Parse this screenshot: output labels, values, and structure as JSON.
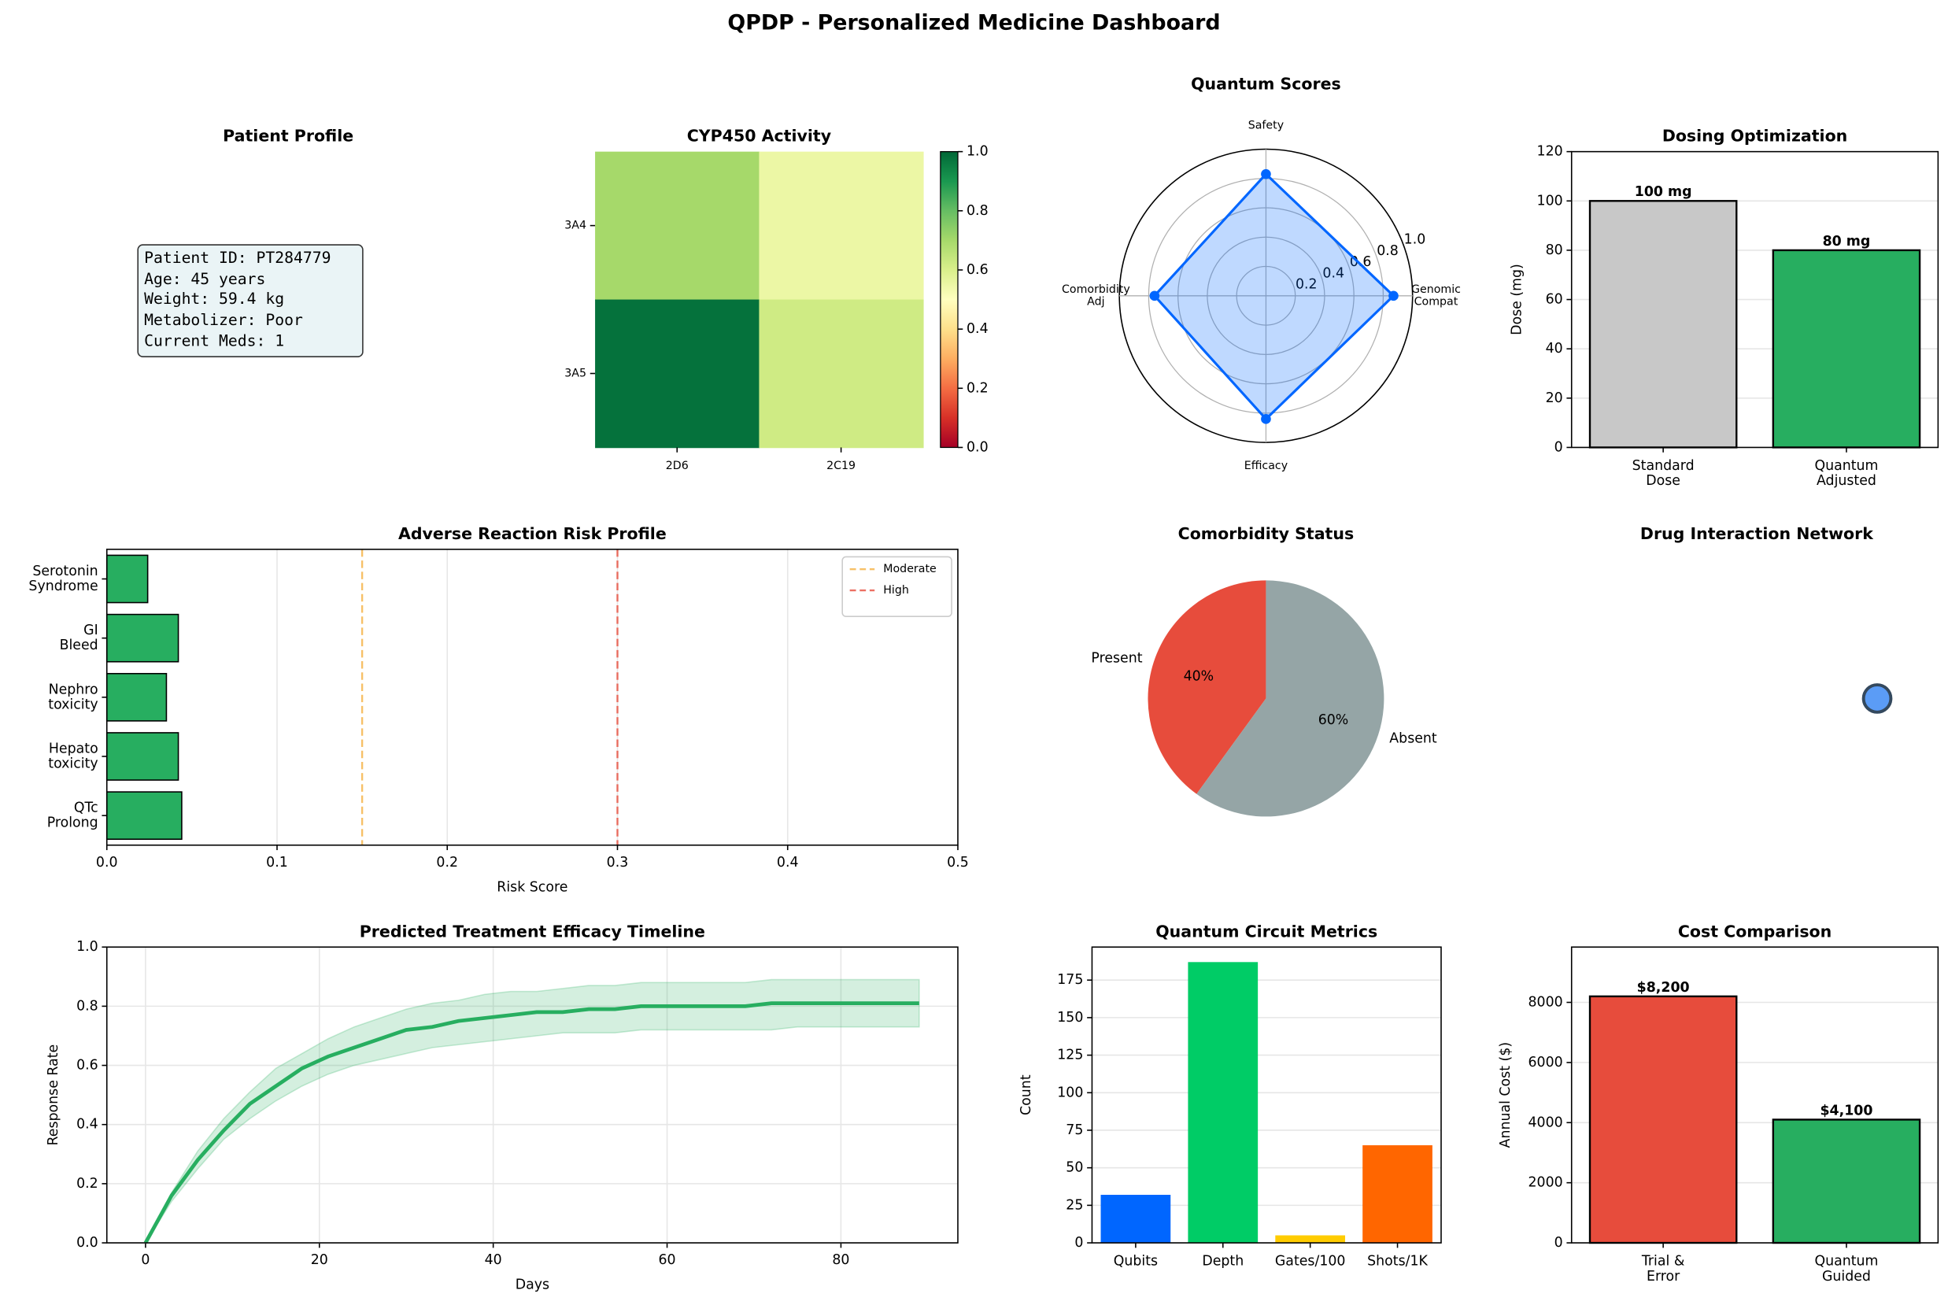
{
  "title": "QPDP - Personalized Medicine Dashboard",
  "patient_profile": {
    "title": "Patient Profile",
    "lines": [
      "Patient ID: PT284779",
      "Age: 45 years",
      "Weight: 59.4 kg",
      "Metabolizer: Poor",
      "Current Meds: 1"
    ]
  },
  "chart_data": [
    {
      "type": "heatmap",
      "title": "CYP450 Activity",
      "rows": [
        "3A4",
        "3A5"
      ],
      "columns": [
        "2D6",
        "2C19"
      ],
      "values": [
        [
          0.7,
          0.55
        ],
        [
          0.98,
          0.62
        ]
      ],
      "colormap": "RdYlGn",
      "clim": [
        0,
        1
      ],
      "cticks": [
        {
          "value": 0,
          "label": "0.0"
        },
        0.2,
        0.4,
        0.6,
        0.8,
        {
          "value": 1,
          "label": "1.0"
        }
      ]
    },
    {
      "type": "radar",
      "title": "Quantum Scores",
      "categories": [
        "Genomic\nCompat",
        "Safety",
        "Comorbidity\nAdj",
        "Efficacy"
      ],
      "values": [
        0.87,
        0.83,
        0.76,
        0.84
      ],
      "color": "#0066ff",
      "rlim": [
        0,
        1
      ],
      "rticks": [
        0.2,
        0.4,
        0.6,
        0.8,
        {
          "value": 1,
          "label": "1.0"
        }
      ]
    },
    {
      "type": "bar",
      "title": "Dosing Optimization",
      "categories": [
        "Standard\nDose",
        "Quantum\nAdjusted"
      ],
      "values": [
        100,
        80
      ],
      "value_labels": [
        "100 mg",
        "80 mg"
      ],
      "colors": [
        "#c8c8c8",
        "#27ae60"
      ],
      "edgecolor": "#000000",
      "ylabel": "Dose (mg)",
      "ylim": [
        0,
        120
      ],
      "yticks": [
        0,
        20,
        40,
        60,
        80,
        100,
        120
      ],
      "grid": true
    },
    {
      "type": "barh",
      "title": "Adverse Reaction Risk Profile",
      "categories": [
        "QTc\nProlong",
        "Hepato\ntoxicity",
        "Nephro\ntoxicity",
        "GI\nBleed",
        "Serotonin\nSyndrome"
      ],
      "values": [
        0.044,
        0.042,
        0.035,
        0.042,
        0.024
      ],
      "color": "#27ae60",
      "edgecolor": "#000000",
      "xlabel": "Risk Score",
      "xlim": [
        0,
        0.5
      ],
      "xticks": [
        {
          "value": 0,
          "label": "0.0"
        },
        0.1,
        0.2,
        0.3,
        0.4,
        0.5
      ],
      "grid": true,
      "refs": [
        {
          "name": "Moderate",
          "value": 0.15,
          "color": "#f5b041"
        },
        {
          "name": "High",
          "value": 0.3,
          "color": "#e74c3c"
        }
      ],
      "legend": "upper right"
    },
    {
      "type": "pie",
      "title": "Comorbidity Status",
      "labels": [
        "Present",
        "Absent"
      ],
      "values": [
        40,
        60
      ],
      "value_labels": [
        "40%",
        "60%"
      ],
      "colors": [
        "#e74c3c",
        "#95a5a6"
      ]
    },
    {
      "type": "network",
      "title": "Drug Interaction Network",
      "node_color": "#5b9cf6"
    },
    {
      "type": "line",
      "title": "Predicted Treatment Efficacy Timeline",
      "xlabel": "Days",
      "ylabel": "Response Rate",
      "x": [
        0,
        3,
        6,
        9,
        12,
        15,
        18,
        21,
        24,
        27,
        30,
        33,
        36,
        39,
        42,
        45,
        48,
        51,
        54,
        57,
        60,
        63,
        66,
        69,
        72,
        75,
        78,
        81,
        84,
        87,
        89
      ],
      "values": [
        0,
        0.16,
        0.28,
        0.38,
        0.47,
        0.53,
        0.59,
        0.63,
        0.66,
        0.69,
        0.72,
        0.73,
        0.75,
        0.76,
        0.77,
        0.78,
        0.78,
        0.79,
        0.79,
        0.8,
        0.8,
        0.8,
        0.8,
        0.8,
        0.81,
        0.81,
        0.81,
        0.81,
        0.81,
        0.81,
        0.81
      ],
      "lower": [
        0,
        0.14,
        0.25,
        0.35,
        0.42,
        0.48,
        0.53,
        0.57,
        0.6,
        0.62,
        0.64,
        0.66,
        0.67,
        0.68,
        0.69,
        0.7,
        0.71,
        0.71,
        0.71,
        0.72,
        0.72,
        0.72,
        0.72,
        0.72,
        0.72,
        0.73,
        0.73,
        0.73,
        0.73,
        0.73,
        0.73
      ],
      "upper": [
        0,
        0.17,
        0.31,
        0.42,
        0.51,
        0.59,
        0.64,
        0.69,
        0.73,
        0.76,
        0.79,
        0.81,
        0.82,
        0.84,
        0.85,
        0.85,
        0.86,
        0.87,
        0.87,
        0.88,
        0.88,
        0.88,
        0.88,
        0.88,
        0.89,
        0.89,
        0.89,
        0.89,
        0.89,
        0.89,
        0.89
      ],
      "color": "#27ae60",
      "xlim": [
        -4.45,
        93.45
      ],
      "xticks": [
        0,
        20,
        40,
        60,
        80
      ],
      "ylim": [
        0,
        1
      ],
      "yticks": [
        {
          "value": 0,
          "label": "0.0"
        },
        0.2,
        0.4,
        0.6,
        0.8,
        {
          "value": 1,
          "label": "1.0"
        }
      ],
      "grid": true
    },
    {
      "type": "bar",
      "title": "Quantum Circuit Metrics",
      "categories": [
        "Qubits",
        "Depth",
        "Gates/100",
        "Shots/1K"
      ],
      "values": [
        32,
        187,
        5,
        65
      ],
      "colors": [
        "#0066ff",
        "#00cc66",
        "#ffcc00",
        "#ff6600"
      ],
      "ylabel": "Count",
      "ylim": [
        0,
        197
      ],
      "yticks": [
        0,
        25,
        50,
        75,
        100,
        125,
        150,
        175
      ],
      "grid": true
    },
    {
      "type": "bar",
      "title": "Cost Comparison",
      "categories": [
        "Trial &\nError",
        "Quantum\nGuided"
      ],
      "values": [
        8200,
        4100
      ],
      "value_labels": [
        "$8,200",
        "$4,100"
      ],
      "colors": [
        "#e74c3c",
        "#27ae60"
      ],
      "edgecolor": "#000000",
      "ylabel": "Annual Cost ($)",
      "ylim": [
        0,
        9840
      ],
      "yticks": [
        0,
        2000,
        4000,
        6000,
        8000
      ],
      "grid": true
    }
  ]
}
